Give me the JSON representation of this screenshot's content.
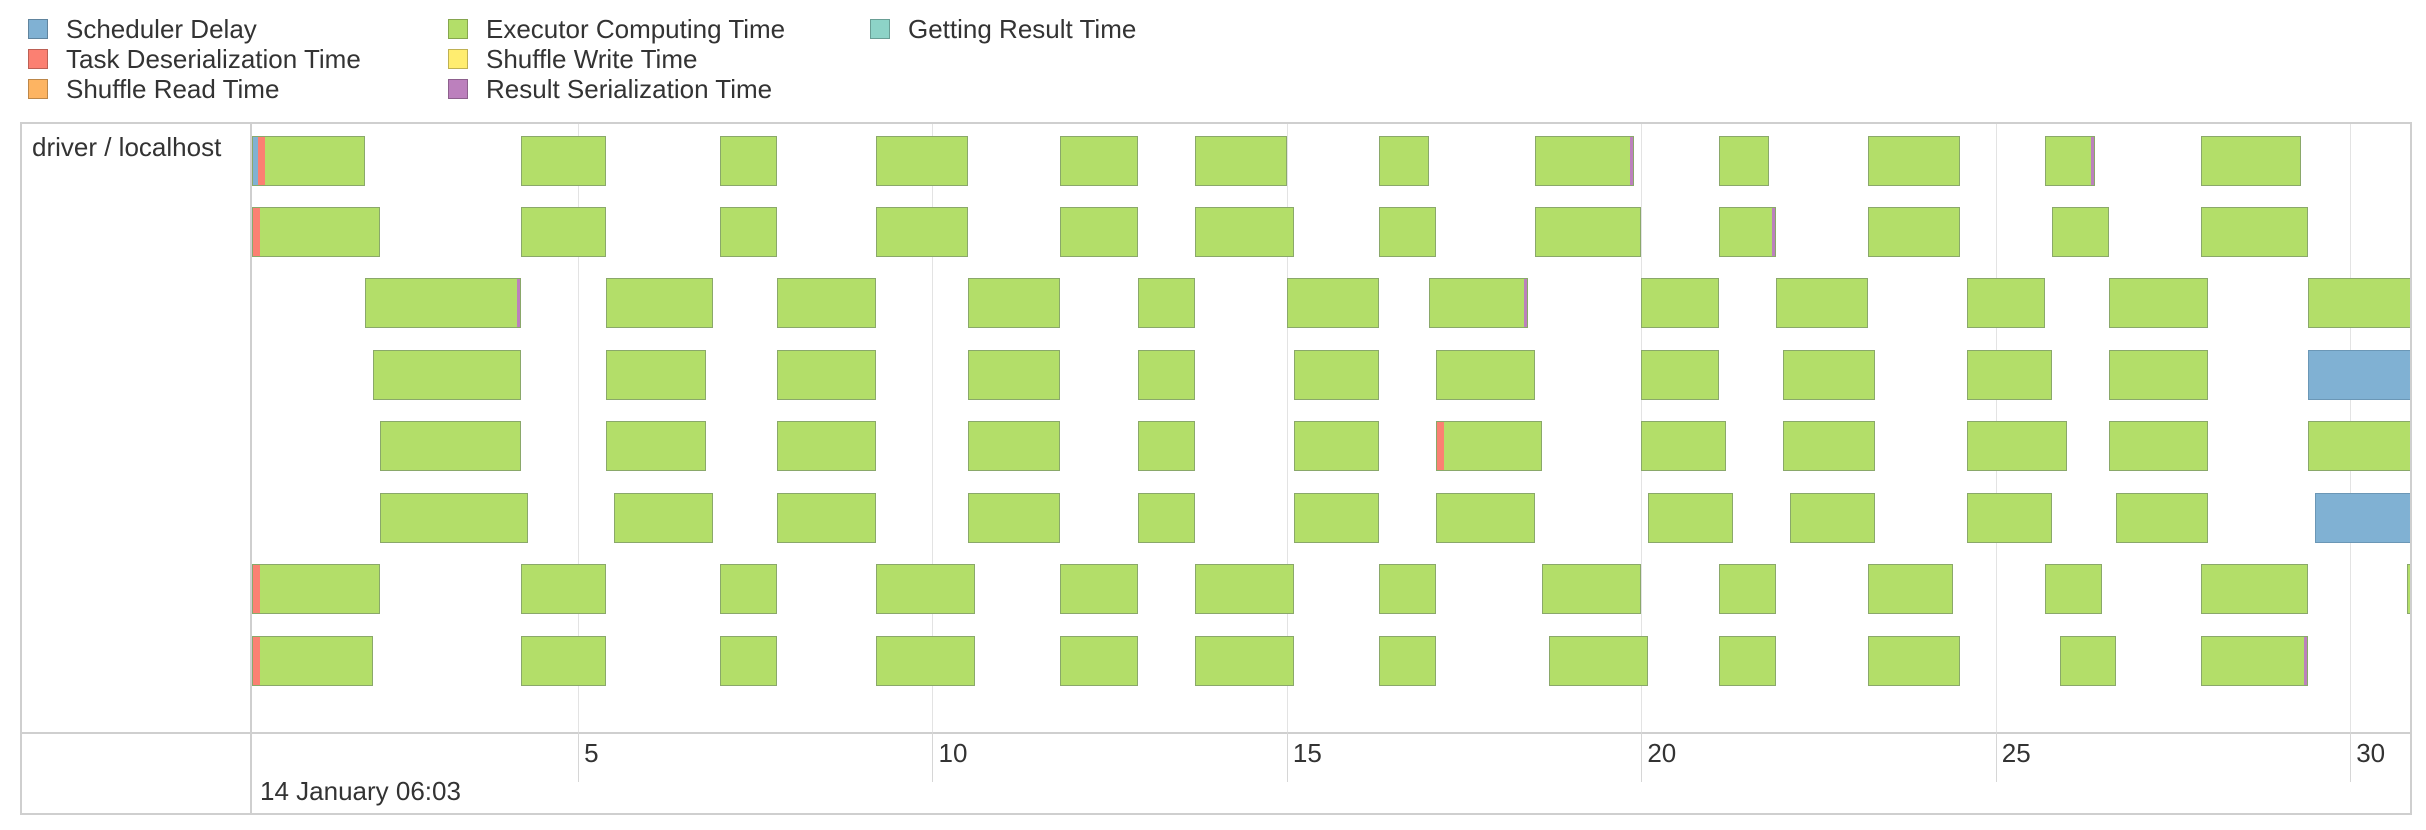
{
  "legend": {
    "items": [
      {
        "label": "Scheduler Delay",
        "color": "#80b1d3"
      },
      {
        "label": "Task Deserialization Time",
        "color": "#fb8072"
      },
      {
        "label": "Shuffle Read Time",
        "color": "#fdb462"
      },
      {
        "label": "Executor Computing Time",
        "color": "#b3de69"
      },
      {
        "label": "Shuffle Write Time",
        "color": "#ffed6f"
      },
      {
        "label": "Result Serialization Time",
        "color": "#bc80bd"
      },
      {
        "label": "Getting Result Time",
        "color": "#8dd3c7"
      }
    ]
  },
  "timeline": {
    "group_label": "driver / localhost",
    "axis_date": "14 January 06:03",
    "time_start": 0.4,
    "time_end": 30.9,
    "ticks": [
      5,
      10,
      15,
      20,
      25,
      30
    ],
    "tick_labels": [
      "5",
      "10",
      "15",
      "20",
      "25",
      "30"
    ],
    "colors": {
      "scheduler_delay": "#80b1d3",
      "deserialization": "#fb8072",
      "compute": "#b3de69",
      "result_serialization": "#bc80bd",
      "border": "#8aa86a",
      "scheduler_border": "#6b97b6"
    },
    "rows": [
      [
        [
          0.4,
          2.0,
          "compute",
          [
            "sched",
            "deser"
          ]
        ],
        [
          4.2,
          5.4,
          "compute",
          []
        ],
        [
          7.0,
          7.8,
          "compute",
          []
        ],
        [
          9.2,
          10.5,
          "compute",
          []
        ],
        [
          11.8,
          12.9,
          "compute",
          []
        ],
        [
          13.7,
          15.0,
          "compute",
          []
        ],
        [
          16.3,
          17.0,
          "compute",
          []
        ],
        [
          18.5,
          19.9,
          "compute",
          [
            "rser"
          ]
        ],
        [
          21.1,
          21.8,
          "compute",
          []
        ],
        [
          23.2,
          24.5,
          "compute",
          []
        ],
        [
          25.7,
          26.4,
          "compute",
          [
            "rser"
          ]
        ],
        [
          27.9,
          29.3,
          "compute",
          []
        ]
      ],
      [
        [
          0.4,
          2.2,
          "compute",
          [
            "deser"
          ]
        ],
        [
          4.2,
          5.4,
          "compute",
          []
        ],
        [
          7.0,
          7.8,
          "compute",
          []
        ],
        [
          9.2,
          10.5,
          "compute",
          []
        ],
        [
          11.8,
          12.9,
          "compute",
          []
        ],
        [
          13.7,
          15.1,
          "compute",
          []
        ],
        [
          16.3,
          17.1,
          "compute",
          []
        ],
        [
          18.5,
          20.0,
          "compute",
          []
        ],
        [
          21.1,
          21.9,
          "compute",
          [
            "rser"
          ]
        ],
        [
          23.2,
          24.5,
          "compute",
          []
        ],
        [
          25.8,
          26.6,
          "compute",
          []
        ],
        [
          27.9,
          29.4,
          "compute",
          []
        ]
      ],
      [
        [
          2.0,
          4.2,
          "compute",
          [
            "rser"
          ]
        ],
        [
          5.4,
          6.9,
          "compute",
          []
        ],
        [
          7.8,
          9.2,
          "compute",
          []
        ],
        [
          10.5,
          11.8,
          "compute",
          []
        ],
        [
          12.9,
          13.7,
          "compute",
          []
        ],
        [
          15.0,
          16.3,
          "compute",
          []
        ],
        [
          17.0,
          18.4,
          "compute",
          [
            "rser"
          ]
        ],
        [
          20.0,
          21.1,
          "compute",
          []
        ],
        [
          21.9,
          23.2,
          "compute",
          []
        ],
        [
          24.6,
          25.7,
          "compute",
          []
        ],
        [
          26.6,
          28.0,
          "compute",
          []
        ],
        [
          29.4,
          30.9,
          "compute",
          []
        ]
      ],
      [
        [
          2.1,
          4.2,
          "compute",
          []
        ],
        [
          5.4,
          6.8,
          "compute",
          []
        ],
        [
          7.8,
          9.2,
          "compute",
          []
        ],
        [
          10.5,
          11.8,
          "compute",
          []
        ],
        [
          12.9,
          13.7,
          "compute",
          []
        ],
        [
          15.1,
          16.3,
          "compute",
          []
        ],
        [
          17.1,
          18.5,
          "compute",
          []
        ],
        [
          20.0,
          21.1,
          "compute",
          []
        ],
        [
          22.0,
          23.3,
          "compute",
          []
        ],
        [
          24.6,
          25.8,
          "compute",
          []
        ],
        [
          26.6,
          28.0,
          "compute",
          []
        ],
        [
          29.4,
          30.9,
          "scheduler_delay",
          []
        ]
      ],
      [
        [
          2.2,
          4.2,
          "compute",
          []
        ],
        [
          5.4,
          6.8,
          "compute",
          []
        ],
        [
          7.8,
          9.2,
          "compute",
          []
        ],
        [
          10.5,
          11.8,
          "compute",
          []
        ],
        [
          12.9,
          13.7,
          "compute",
          []
        ],
        [
          15.1,
          16.3,
          "compute",
          []
        ],
        [
          17.1,
          18.6,
          "compute",
          [
            "deser"
          ]
        ],
        [
          20.0,
          21.2,
          "compute",
          []
        ],
        [
          22.0,
          23.3,
          "compute",
          []
        ],
        [
          24.6,
          26.0,
          "compute",
          []
        ],
        [
          26.6,
          28.0,
          "compute",
          []
        ],
        [
          29.4,
          30.9,
          "compute",
          []
        ]
      ],
      [
        [
          2.2,
          4.3,
          "compute",
          []
        ],
        [
          5.5,
          6.9,
          "compute",
          []
        ],
        [
          7.8,
          9.2,
          "compute",
          []
        ],
        [
          10.5,
          11.8,
          "compute",
          []
        ],
        [
          12.9,
          13.7,
          "compute",
          []
        ],
        [
          15.1,
          16.3,
          "compute",
          []
        ],
        [
          17.1,
          18.5,
          "compute",
          []
        ],
        [
          20.1,
          21.3,
          "compute",
          []
        ],
        [
          22.1,
          23.3,
          "compute",
          []
        ],
        [
          24.6,
          25.8,
          "compute",
          []
        ],
        [
          26.7,
          28.0,
          "compute",
          []
        ],
        [
          29.5,
          30.9,
          "scheduler_delay",
          []
        ]
      ],
      [
        [
          0.4,
          2.2,
          "compute",
          [
            "deser"
          ]
        ],
        [
          4.2,
          5.4,
          "compute",
          []
        ],
        [
          7.0,
          7.8,
          "compute",
          []
        ],
        [
          9.2,
          10.6,
          "compute",
          []
        ],
        [
          11.8,
          12.9,
          "compute",
          []
        ],
        [
          13.7,
          15.1,
          "compute",
          []
        ],
        [
          16.3,
          17.1,
          "compute",
          []
        ],
        [
          18.6,
          20.0,
          "compute",
          []
        ],
        [
          21.1,
          21.9,
          "compute",
          []
        ],
        [
          23.2,
          24.4,
          "compute",
          []
        ],
        [
          25.7,
          26.5,
          "compute",
          []
        ],
        [
          27.9,
          29.4,
          "compute",
          []
        ],
        [
          30.8,
          30.9,
          "compute",
          []
        ]
      ],
      [
        [
          0.4,
          2.1,
          "compute",
          [
            "deser"
          ]
        ],
        [
          4.2,
          5.4,
          "compute",
          []
        ],
        [
          7.0,
          7.8,
          "compute",
          []
        ],
        [
          9.2,
          10.6,
          "compute",
          []
        ],
        [
          11.8,
          12.9,
          "compute",
          []
        ],
        [
          13.7,
          15.1,
          "compute",
          []
        ],
        [
          16.3,
          17.1,
          "compute",
          []
        ],
        [
          18.7,
          20.1,
          "compute",
          []
        ],
        [
          21.1,
          21.9,
          "compute",
          []
        ],
        [
          23.2,
          24.5,
          "compute",
          []
        ],
        [
          25.9,
          26.7,
          "compute",
          []
        ],
        [
          27.9,
          29.4,
          "compute",
          [
            "rser"
          ]
        ]
      ]
    ]
  }
}
